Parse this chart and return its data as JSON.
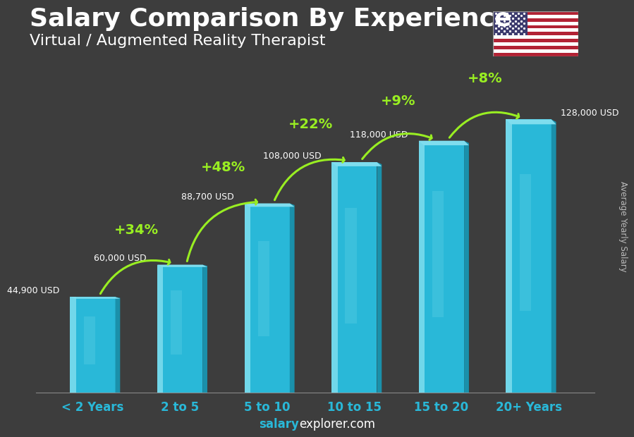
{
  "title": "Salary Comparison By Experience",
  "subtitle": "Virtual / Augmented Reality Therapist",
  "categories": [
    "< 2 Years",
    "2 to 5",
    "5 to 10",
    "10 to 15",
    "15 to 20",
    "20+ Years"
  ],
  "values": [
    44900,
    60000,
    88700,
    108000,
    118000,
    128000
  ],
  "value_labels": [
    "44,900 USD",
    "60,000 USD",
    "88,700 USD",
    "108,000 USD",
    "118,000 USD",
    "128,000 USD"
  ],
  "pct_labels": [
    "+34%",
    "+48%",
    "+22%",
    "+9%",
    "+8%"
  ],
  "bar_color_main": "#29B8D8",
  "bar_color_light": "#7FDDEE",
  "bar_color_dark": "#1A90AA",
  "bar_color_shadow": "#0E6880",
  "background_color": "#3d3d3d",
  "title_color": "#ffffff",
  "subtitle_color": "#ffffff",
  "value_label_color": "#ffffff",
  "pct_color": "#99ee22",
  "xlabel_color": "#29B8D8",
  "ylabel": "Average Yearly Salary",
  "footer_salary": "salary",
  "footer_rest": "explorer.com",
  "ylim_max": 148000,
  "title_fontsize": 26,
  "subtitle_fontsize": 16
}
